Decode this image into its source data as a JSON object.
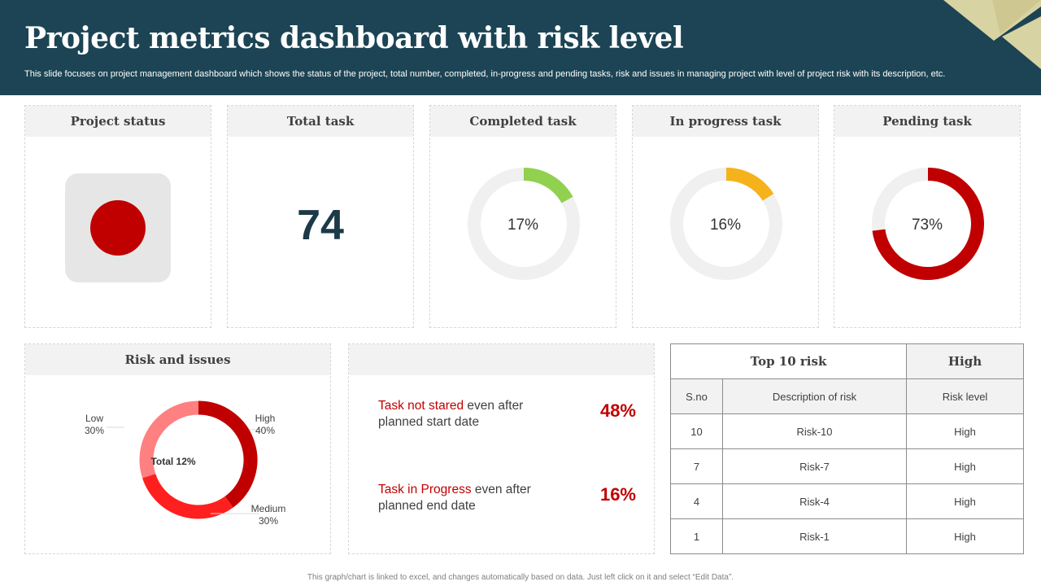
{
  "header": {
    "title": "Project metrics dashboard with risk level",
    "subtitle": "This slide focuses on project management dashboard which shows the status of the project, total number, completed, in-progress and pending tasks, risk and issues in managing project with level of project risk with its description, etc."
  },
  "cards": {
    "project_status": {
      "title": "Project status",
      "status_color": "#c00000"
    },
    "total_task": {
      "title": "Total task",
      "value": "74"
    },
    "completed": {
      "title": "Completed task",
      "label": "17%",
      "percent": 17,
      "color": "#92d050"
    },
    "in_progress": {
      "title": "In progress task",
      "label": "16%",
      "percent": 16,
      "color": "#f5b21b"
    },
    "pending": {
      "title": "Pending task",
      "label": "73%",
      "percent": 73,
      "color": "#c00000"
    }
  },
  "risk_issues": {
    "title": "Risk and issues",
    "center_label": "Total 12%",
    "segments": [
      {
        "name": "High",
        "value": "40%",
        "percent": 40,
        "color": "#c00000"
      },
      {
        "name": "Medium",
        "value": "30%",
        "percent": 30,
        "color": "#ff1f1f"
      },
      {
        "name": "Low",
        "value": "30%",
        "percent": 30,
        "color": "#ff8080"
      }
    ]
  },
  "task_risks": [
    {
      "highlight": "Task not stared",
      "rest_line1": " even after",
      "rest_line2": "planned start date",
      "percent": "48%"
    },
    {
      "highlight": "Task in Progress",
      "rest_line1": " even after",
      "rest_line2": "planned end date",
      "percent": "16%"
    }
  ],
  "top_risk_table": {
    "title": "Top 10 risk",
    "level": "High",
    "columns": [
      "S.no",
      "Description of risk",
      "Risk level"
    ],
    "rows": [
      [
        "10",
        "Risk-10",
        "High"
      ],
      [
        "7",
        "Risk-7",
        "High"
      ],
      [
        "4",
        "Risk-4",
        "High"
      ],
      [
        "1",
        "Risk-1",
        "High"
      ]
    ]
  },
  "footer": "This graph/chart is linked to excel, and changes automatically based on data. Just left click on it and select “Edit Data”."
}
